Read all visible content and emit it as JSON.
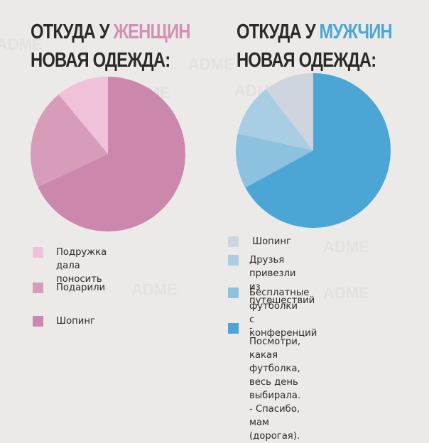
{
  "women": {
    "title_prefix": "ОТКУДА У ",
    "title_highlight": "ЖЕНЩИН",
    "title_line2": "НОВАЯ ОДЕЖДА:",
    "highlight_color": "#d48fb3",
    "legend": [
      {
        "label": "Подружка дала поносить",
        "color": "#f1c1da"
      },
      {
        "label": "Подарили",
        "color": "#d89cbb"
      },
      {
        "label": "Шопинг",
        "color": "#cc87ad"
      }
    ]
  },
  "men": {
    "title_prefix": "ОТКУДА У ",
    "title_highlight": "МУЖЧИН",
    "title_line2": "НОВАЯ ОДЕЖДА:",
    "highlight_color": "#4aa7d6",
    "legend": [
      {
        "label": "Шопинг",
        "color": "#cfd5df"
      },
      {
        "label": "Друзья привезли\nиз путешествий",
        "color": "#a9cde2"
      },
      {
        "label": "Бесплатные футболки\nс конференций",
        "color": "#8cc1e0"
      },
      {
        "label": "- Посмотри, какая футболка,\nвесь день выбирала.\n- Спасибо, мам (дорогая).",
        "color": "#4ba6d6"
      }
    ]
  },
  "watermark": "ADME",
  "chart_data": [
    {
      "type": "pie",
      "title": "ОТКУДА У ЖЕНЩИН НОВАЯ ОДЕЖДА:",
      "categories": [
        "Подружка дала поносить",
        "Подарили",
        "Шопинг"
      ],
      "values": [
        11,
        21,
        68
      ],
      "colors": [
        "#f1c1da",
        "#d89cbb",
        "#cc87ad"
      ],
      "start_angle": "12 o'clock, counter-clockwise",
      "legend_position": "bottom"
    },
    {
      "type": "pie",
      "title": "ОТКУДА У МУЖЧИН НОВАЯ ОДЕЖДА:",
      "categories": [
        "Шопинг",
        "Друзья привезли из путешествий",
        "Бесплатные футболки с конференций",
        "- Посмотри, какая футболка, весь день выбирала. - Спасибо, мам (дорогая)."
      ],
      "values": [
        10.5,
        11,
        11.5,
        67
      ],
      "colors": [
        "#cfd5df",
        "#a9cde2",
        "#8cc1e0",
        "#4ba6d6"
      ],
      "start_angle": "12 o'clock, counter-clockwise",
      "legend_position": "bottom"
    }
  ]
}
